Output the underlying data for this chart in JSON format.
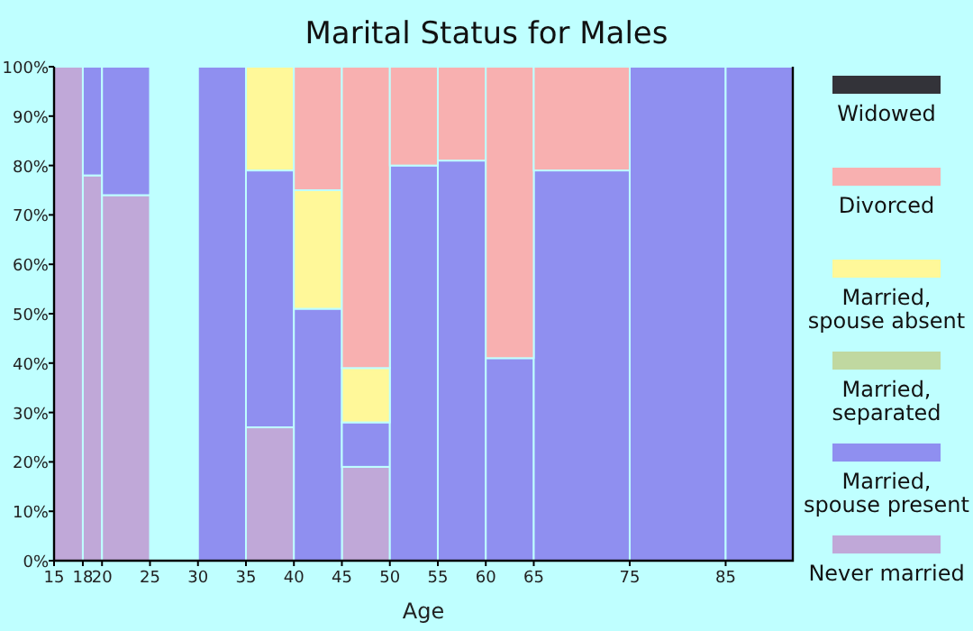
{
  "chart_data": {
    "type": "bar",
    "stacked": true,
    "title": "Marital Status for Males",
    "xlabel": "Age",
    "x": [
      16.5,
      19,
      22.5,
      27.5,
      32.5,
      37.5,
      42.5,
      47.5,
      52.5,
      57.5,
      62.5,
      70,
      80,
      88.5
    ],
    "xlim": [
      15,
      92
    ],
    "xticks": [
      15,
      18,
      20,
      25,
      30,
      35,
      40,
      45,
      50,
      55,
      60,
      65,
      75,
      85
    ],
    "ylim": [
      0,
      100
    ],
    "yticks": [
      {
        "value": 0,
        "label": "0%"
      },
      {
        "value": 10,
        "label": "10%"
      },
      {
        "value": 20,
        "label": "20%"
      },
      {
        "value": 30,
        "label": "30%"
      },
      {
        "value": 40,
        "label": "40%"
      },
      {
        "value": 50,
        "label": "50%"
      },
      {
        "value": 60,
        "label": "60%"
      },
      {
        "value": 70,
        "label": "70%"
      },
      {
        "value": 80,
        "label": "80%"
      },
      {
        "value": 90,
        "label": "90%"
      },
      {
        "value": 100,
        "label": "100%"
      }
    ],
    "legend": "right",
    "series": [
      {
        "name": "Never married",
        "color": "#c0a8d8",
        "values": [
          100,
          78,
          74,
          null,
          null,
          27,
          null,
          19,
          null,
          null,
          null,
          null,
          null,
          null
        ]
      },
      {
        "name": "Married, spouse present",
        "color": "#8f8ff0",
        "values": [
          null,
          22,
          26,
          null,
          100,
          52,
          51,
          9,
          80,
          81,
          41,
          79,
          100,
          100
        ]
      },
      {
        "name": "Married, separated",
        "color": "#c0d8a0",
        "values": [
          null,
          null,
          null,
          null,
          null,
          null,
          null,
          null,
          null,
          null,
          null,
          null,
          null,
          null
        ]
      },
      {
        "name": "Married, spouse absent",
        "color": "#fff899",
        "values": [
          null,
          null,
          null,
          null,
          null,
          21,
          24,
          11,
          null,
          null,
          null,
          null,
          null,
          null
        ]
      },
      {
        "name": "Divorced",
        "color": "#f8b0b0",
        "values": [
          null,
          null,
          null,
          null,
          null,
          null,
          25,
          61,
          20,
          19,
          59,
          21,
          null,
          null
        ]
      },
      {
        "name": "Widowed",
        "color": "#333339",
        "values": [
          null,
          null,
          null,
          null,
          null,
          null,
          null,
          null,
          null,
          null,
          null,
          null,
          null,
          null
        ]
      }
    ]
  }
}
